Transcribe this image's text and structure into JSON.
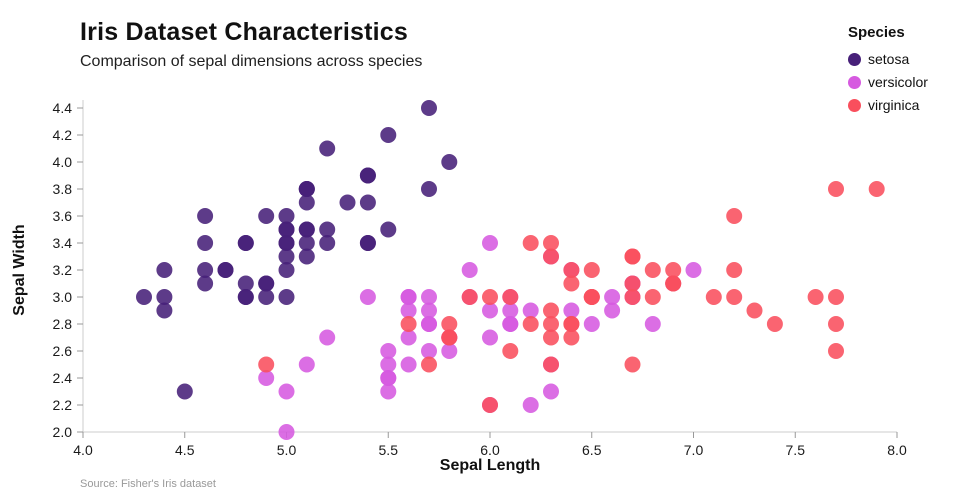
{
  "header": {
    "title": "Iris Dataset Characteristics",
    "subtitle": "Comparison of sepal dimensions across species"
  },
  "legend": {
    "title": "Species",
    "items": [
      {
        "label": "setosa",
        "color": "#472079"
      },
      {
        "label": "versicolor",
        "color": "#d65ae0"
      },
      {
        "label": "virginica",
        "color": "#f94f5d"
      }
    ]
  },
  "footer": {
    "source": "Source: Fisher's Iris dataset"
  },
  "chart_data": {
    "type": "scatter",
    "title": "Iris Dataset Characteristics",
    "subtitle": "Comparison of sepal dimensions across species",
    "xlabel": "Sepal Length",
    "ylabel": "Sepal Width",
    "xlim": [
      4.0,
      8.0
    ],
    "ylim": [
      2.0,
      4.4
    ],
    "xticks": [
      4.0,
      4.5,
      5.0,
      5.5,
      6.0,
      6.5,
      7.0,
      7.5,
      8.0
    ],
    "yticks": [
      2.0,
      2.2,
      2.4,
      2.6,
      2.8,
      3.0,
      3.2,
      3.4,
      3.6,
      3.8,
      4.0,
      4.2,
      4.4
    ],
    "grid": false,
    "legend_position": "top-right",
    "marker_radius": 8,
    "series": [
      {
        "name": "setosa",
        "color": "#472079",
        "points": [
          [
            5.1,
            3.5
          ],
          [
            4.9,
            3.0
          ],
          [
            4.7,
            3.2
          ],
          [
            4.6,
            3.1
          ],
          [
            5.0,
            3.6
          ],
          [
            5.4,
            3.9
          ],
          [
            4.6,
            3.4
          ],
          [
            5.0,
            3.4
          ],
          [
            4.4,
            2.9
          ],
          [
            4.9,
            3.1
          ],
          [
            5.4,
            3.7
          ],
          [
            4.8,
            3.4
          ],
          [
            4.8,
            3.0
          ],
          [
            4.3,
            3.0
          ],
          [
            5.8,
            4.0
          ],
          [
            5.7,
            4.4
          ],
          [
            5.4,
            3.9
          ],
          [
            5.1,
            3.5
          ],
          [
            5.7,
            3.8
          ],
          [
            5.1,
            3.8
          ],
          [
            5.4,
            3.4
          ],
          [
            5.1,
            3.7
          ],
          [
            4.6,
            3.6
          ],
          [
            5.1,
            3.3
          ],
          [
            4.8,
            3.4
          ],
          [
            5.0,
            3.0
          ],
          [
            5.0,
            3.4
          ],
          [
            5.2,
            3.5
          ],
          [
            5.2,
            3.4
          ],
          [
            4.7,
            3.2
          ],
          [
            4.8,
            3.1
          ],
          [
            5.4,
            3.4
          ],
          [
            5.2,
            4.1
          ],
          [
            5.5,
            4.2
          ],
          [
            4.9,
            3.1
          ],
          [
            5.0,
            3.2
          ],
          [
            5.5,
            3.5
          ],
          [
            4.9,
            3.6
          ],
          [
            4.4,
            3.0
          ],
          [
            5.1,
            3.4
          ],
          [
            5.0,
            3.5
          ],
          [
            4.5,
            2.3
          ],
          [
            4.4,
            3.2
          ],
          [
            5.0,
            3.5
          ],
          [
            5.1,
            3.8
          ],
          [
            4.8,
            3.0
          ],
          [
            5.1,
            3.8
          ],
          [
            4.6,
            3.2
          ],
          [
            5.3,
            3.7
          ],
          [
            5.0,
            3.3
          ]
        ]
      },
      {
        "name": "versicolor",
        "color": "#d65ae0",
        "points": [
          [
            7.0,
            3.2
          ],
          [
            6.4,
            3.2
          ],
          [
            6.9,
            3.1
          ],
          [
            5.5,
            2.3
          ],
          [
            6.5,
            2.8
          ],
          [
            5.7,
            2.8
          ],
          [
            6.3,
            3.3
          ],
          [
            4.9,
            2.4
          ],
          [
            6.6,
            2.9
          ],
          [
            5.2,
            2.7
          ],
          [
            5.0,
            2.0
          ],
          [
            5.9,
            3.0
          ],
          [
            6.0,
            2.2
          ],
          [
            6.1,
            2.9
          ],
          [
            5.6,
            2.9
          ],
          [
            6.7,
            3.1
          ],
          [
            5.6,
            3.0
          ],
          [
            5.8,
            2.7
          ],
          [
            6.2,
            2.2
          ],
          [
            5.6,
            2.5
          ],
          [
            5.9,
            3.2
          ],
          [
            6.1,
            2.8
          ],
          [
            6.3,
            2.5
          ],
          [
            6.1,
            2.8
          ],
          [
            6.4,
            2.9
          ],
          [
            6.6,
            3.0
          ],
          [
            6.8,
            2.8
          ],
          [
            6.7,
            3.0
          ],
          [
            6.0,
            2.9
          ],
          [
            5.7,
            2.6
          ],
          [
            5.5,
            2.4
          ],
          [
            5.5,
            2.4
          ],
          [
            5.8,
            2.7
          ],
          [
            6.0,
            2.7
          ],
          [
            5.4,
            3.0
          ],
          [
            6.0,
            3.4
          ],
          [
            6.7,
            3.1
          ],
          [
            6.3,
            2.3
          ],
          [
            5.6,
            3.0
          ],
          [
            5.5,
            2.5
          ],
          [
            5.5,
            2.6
          ],
          [
            6.1,
            3.0
          ],
          [
            5.8,
            2.6
          ],
          [
            5.0,
            2.3
          ],
          [
            5.6,
            2.7
          ],
          [
            5.7,
            3.0
          ],
          [
            5.7,
            2.9
          ],
          [
            6.2,
            2.9
          ],
          [
            5.1,
            2.5
          ],
          [
            5.7,
            2.8
          ]
        ]
      },
      {
        "name": "virginica",
        "color": "#f94f5d",
        "points": [
          [
            6.3,
            3.3
          ],
          [
            5.8,
            2.7
          ],
          [
            7.1,
            3.0
          ],
          [
            6.3,
            2.9
          ],
          [
            6.5,
            3.0
          ],
          [
            7.6,
            3.0
          ],
          [
            4.9,
            2.5
          ],
          [
            7.3,
            2.9
          ],
          [
            6.7,
            2.5
          ],
          [
            7.2,
            3.6
          ],
          [
            6.5,
            3.2
          ],
          [
            6.4,
            2.7
          ],
          [
            6.8,
            3.0
          ],
          [
            5.7,
            2.5
          ],
          [
            5.8,
            2.8
          ],
          [
            6.4,
            3.2
          ],
          [
            6.5,
            3.0
          ],
          [
            7.7,
            3.8
          ],
          [
            7.7,
            2.6
          ],
          [
            6.0,
            2.2
          ],
          [
            6.9,
            3.2
          ],
          [
            5.6,
            2.8
          ],
          [
            7.7,
            2.8
          ],
          [
            6.3,
            2.7
          ],
          [
            6.7,
            3.3
          ],
          [
            7.2,
            3.2
          ],
          [
            6.2,
            2.8
          ],
          [
            6.1,
            3.0
          ],
          [
            6.4,
            2.8
          ],
          [
            7.2,
            3.0
          ],
          [
            7.4,
            2.8
          ],
          [
            7.9,
            3.8
          ],
          [
            6.4,
            2.8
          ],
          [
            6.3,
            2.8
          ],
          [
            6.1,
            2.6
          ],
          [
            7.7,
            3.0
          ],
          [
            6.3,
            3.4
          ],
          [
            6.4,
            3.1
          ],
          [
            6.0,
            3.0
          ],
          [
            6.9,
            3.1
          ],
          [
            6.7,
            3.1
          ],
          [
            6.9,
            3.1
          ],
          [
            5.8,
            2.7
          ],
          [
            6.8,
            3.2
          ],
          [
            6.7,
            3.3
          ],
          [
            6.7,
            3.0
          ],
          [
            6.3,
            2.5
          ],
          [
            6.5,
            3.0
          ],
          [
            6.2,
            3.4
          ],
          [
            5.9,
            3.0
          ]
        ]
      }
    ]
  }
}
